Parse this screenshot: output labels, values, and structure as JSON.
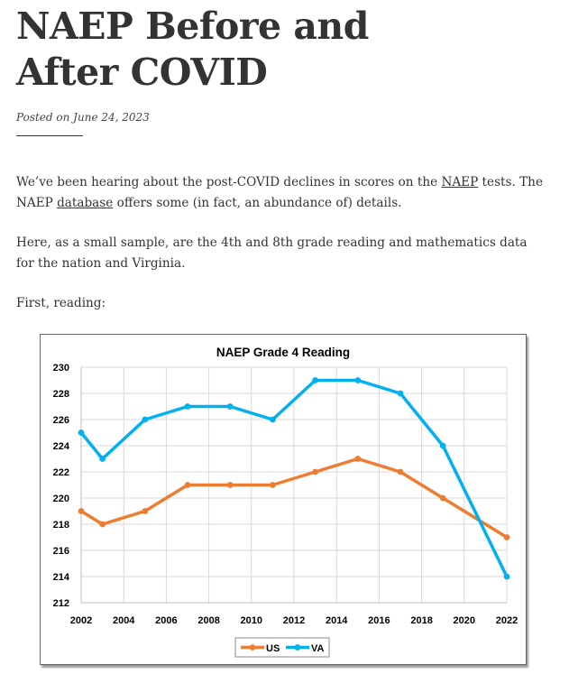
{
  "post": {
    "title_line1": "NAEP Before and",
    "title_line2": "After COVID",
    "posted_prefix": "Posted on",
    "posted_date": "June 24, 2023",
    "para1_before_link1": "We’ve been hearing about the post-COVID declines in scores on the ",
    "link_naep": "NAEP",
    "para1_between": " tests. The NAEP ",
    "link_database": "database",
    "para1_after": " offers some (in fact, an abundance of) details.",
    "para2": "Here, as a small sample, are the 4th and 8th grade reading and mathematics data for the nation and Virginia.",
    "para3": "First, reading:"
  },
  "chart_data": {
    "type": "line",
    "title": "NAEP Grade 4 Reading",
    "xlabel": "",
    "ylabel": "",
    "x": [
      2002,
      2003,
      2005,
      2007,
      2009,
      2011,
      2013,
      2015,
      2017,
      2019,
      2022
    ],
    "x_ticks": [
      2002,
      2004,
      2006,
      2008,
      2010,
      2012,
      2014,
      2016,
      2018,
      2020,
      2022
    ],
    "xlim": [
      2002,
      2022
    ],
    "ylim": [
      212,
      230
    ],
    "y_ticks": [
      212,
      214,
      216,
      218,
      220,
      222,
      224,
      226,
      228,
      230
    ],
    "grid": true,
    "legend_position": "bottom",
    "series": [
      {
        "name": "US",
        "color": "#ed7d31",
        "values": [
          219,
          218,
          219,
          221,
          221,
          221,
          222,
          223,
          222,
          220,
          217
        ]
      },
      {
        "name": "VA",
        "color": "#00b0f0",
        "values": [
          225,
          223,
          226,
          227,
          227,
          226,
          229,
          229,
          228,
          224,
          214
        ]
      }
    ]
  }
}
